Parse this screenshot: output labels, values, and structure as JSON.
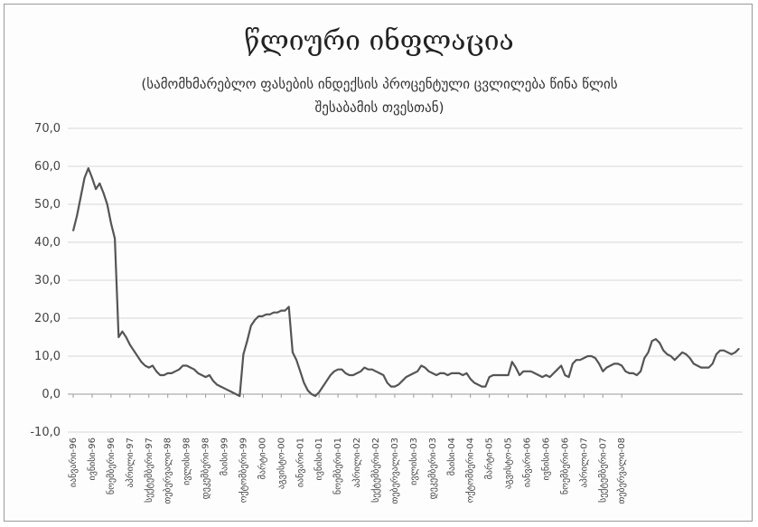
{
  "chart_data": {
    "type": "line",
    "title": "წლიური ინფლაცია",
    "subtitle": "(სამომხმარებლო ფასების ინდექსის პროცენტული ცვლილება წინა წლის შესაბამის თვესთან)",
    "xlabel": "",
    "ylabel": "",
    "ylim": [
      -10,
      70
    ],
    "y_ticks": [
      "-10,0",
      "0,0",
      "10,0",
      "20,0",
      "30,0",
      "40,0",
      "50,0",
      "60,0",
      "70,0"
    ],
    "grid": true,
    "legend": "none",
    "x_tick_labels": [
      "იანვარი-96",
      "ივნისი-96",
      "ნოემბერი-96",
      "აპრილი-97",
      "სექტემბერი-97",
      "თებერვალი-98",
      "ივლისი-98",
      "დეკემბერი-98",
      "მაისი-99",
      "ოქტომბერი-99",
      "მარტი-00",
      "აგვისტო-00",
      "იანვარი-01",
      "ივნისი-01",
      "ნოემბერი-01",
      "აპრილი-02",
      "სექტემბერი-02",
      "თებერვალი-03",
      "ივლისი-03",
      "დეკემბერი-03",
      "მაისი-04",
      "ოქტომბერი-04",
      "მარტი-05",
      "აგვისტო-05",
      "იანვარი-06",
      "ივნისი-06",
      "ნოემბერი-06",
      "აპრილი-07",
      "სექტემბერი-07",
      "თებერვალი-08"
    ],
    "series": [
      {
        "color": "#555555",
        "values": [
          43,
          47,
          52,
          57,
          59.5,
          57,
          54,
          55.5,
          53,
          50,
          45,
          41,
          15,
          16.5,
          15,
          13,
          11.5,
          10,
          8.5,
          7.5,
          7,
          7.5,
          6,
          5,
          5,
          5.5,
          5.5,
          6,
          6.5,
          7.5,
          7.5,
          7,
          6.5,
          5.5,
          5,
          4.5,
          5,
          3.5,
          2.5,
          2,
          1.5,
          1,
          0.5,
          0,
          -0.5,
          10.5,
          14,
          18,
          19.5,
          20.5,
          20.5,
          21,
          21,
          21.5,
          21.5,
          22,
          22,
          23,
          11,
          9,
          6,
          3,
          1,
          0,
          -0.5,
          0.5,
          2,
          3.5,
          5,
          6,
          6.5,
          6.5,
          5.5,
          5,
          5,
          5.5,
          6,
          7,
          6.5,
          6.5,
          6,
          5.5,
          5,
          3,
          2,
          2,
          2.5,
          3.5,
          4.5,
          5,
          5.5,
          6,
          7.5,
          7,
          6,
          5.5,
          5,
          5.5,
          5.5,
          5,
          5.5,
          5.5,
          5.5,
          5,
          5.5,
          4,
          3,
          2.5,
          2,
          2,
          4.5,
          5,
          5,
          5,
          5,
          5,
          8.5,
          7,
          5,
          6,
          6,
          6,
          5.5,
          5,
          4.5,
          5,
          4.5,
          5.5,
          6.5,
          7.5,
          5,
          4.5,
          8,
          9,
          9,
          9.5,
          10,
          10,
          9.5,
          8,
          6,
          7,
          7.5,
          8,
          8,
          7.5,
          6,
          5.5,
          5.5,
          5,
          6,
          9.5,
          11,
          14,
          14.5,
          13.5,
          11.5,
          10.5,
          10,
          9,
          10,
          11,
          10.5,
          9.5,
          8,
          7.5,
          7,
          7,
          7,
          8,
          10.5,
          11.5,
          11.5,
          11,
          10.5,
          11,
          12
        ]
      }
    ]
  }
}
